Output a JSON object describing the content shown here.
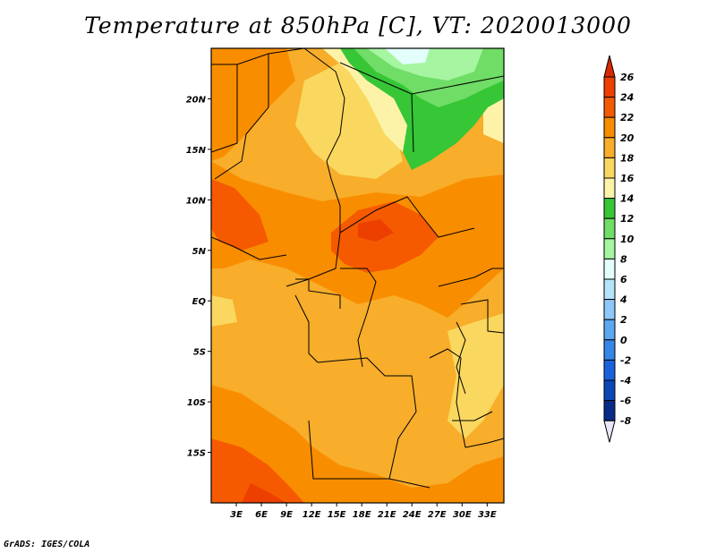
{
  "title": "Temperature at 850hPa [C], VT: 2020013000",
  "credit": "GrADS: IGES/COLA",
  "map": {
    "lon_labels": [
      "3E",
      "6E",
      "9E",
      "12E",
      "15E",
      "18E",
      "21E",
      "24E",
      "27E",
      "30E",
      "33E"
    ],
    "lat_labels": [
      "20N",
      "15N",
      "10N",
      "5N",
      "EQ",
      "5S",
      "10S",
      "15S"
    ],
    "lon_range": [
      0,
      35
    ],
    "lat_range": [
      -20,
      25
    ]
  },
  "colorbar": {
    "levels": [
      "26",
      "24",
      "22",
      "20",
      "18",
      "16",
      "14",
      "12",
      "10",
      "8",
      "6",
      "4",
      "2",
      "0",
      "-2",
      "-4",
      "-6",
      "-8"
    ],
    "colors": {
      "above_26": "#d92800",
      "24_26": "#ed3f00",
      "22_24": "#f55a00",
      "20_22": "#f98d00",
      "18_20": "#f8ad2b",
      "16_18": "#fad75e",
      "14_16": "#fcf3a8",
      "12_14": "#36c636",
      "10_12": "#6fdd66",
      "8_10": "#a6f5a0",
      "6_8": "#e3fffb",
      "4_6": "#b5e3fb",
      "2_4": "#8ec8f8",
      "0_2": "#5ca8ef",
      "-2_0": "#3686e8",
      "-4_-2": "#1a62dc",
      "-6_-4": "#0d47b7",
      "-8_-6": "#0a2a88",
      "below_-8": "#080c60"
    }
  }
}
